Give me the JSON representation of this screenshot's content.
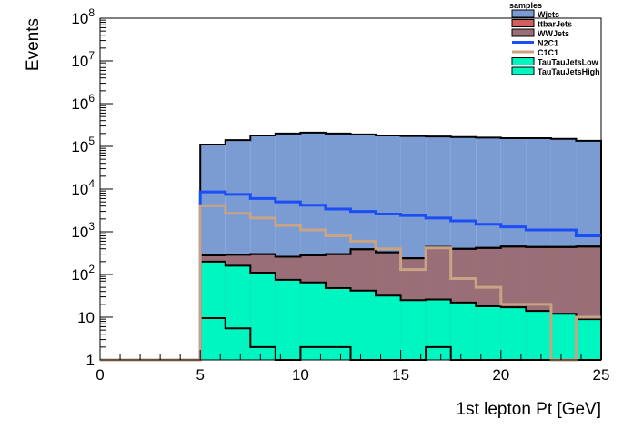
{
  "chart_data": {
    "type": "histogram",
    "xlabel": "1st lepton Pt [GeV]",
    "ylabel": "Events",
    "xlim": [
      0,
      25
    ],
    "ylim": [
      1,
      100000000
    ],
    "log_y": true,
    "grid": false,
    "bin_width": 1.25,
    "bin_edges": [
      0,
      1.25,
      2.5,
      3.75,
      5,
      6.25,
      7.5,
      8.75,
      10,
      11.25,
      12.5,
      13.75,
      15,
      16.25,
      17.5,
      18.75,
      20,
      21.25,
      22.5,
      23.75,
      25
    ],
    "x_ticks": [
      {
        "value": 0,
        "label": "0"
      },
      {
        "value": 5,
        "label": "5"
      },
      {
        "value": 10,
        "label": "10"
      },
      {
        "value": 15,
        "label": "15"
      },
      {
        "value": 20,
        "label": "20"
      },
      {
        "value": 25,
        "label": "25"
      }
    ],
    "y_ticks": [
      {
        "value": 1,
        "base": "1",
        "exp": ""
      },
      {
        "value": 10,
        "base": "10",
        "exp": ""
      },
      {
        "value": 100,
        "base": "10",
        "exp": "2"
      },
      {
        "value": 1000,
        "base": "10",
        "exp": "3"
      },
      {
        "value": 10000,
        "base": "10",
        "exp": "4"
      },
      {
        "value": 100000,
        "base": "10",
        "exp": "5"
      },
      {
        "value": 1000000,
        "base": "10",
        "exp": "6"
      },
      {
        "value": 10000000,
        "base": "10",
        "exp": "7"
      },
      {
        "value": 100000000,
        "base": "10",
        "exp": "8"
      }
    ],
    "legend": {
      "title": "samples",
      "position": "top-right",
      "entries": [
        {
          "name": "Wjets",
          "kind": "fill",
          "color": "#7b9bd3"
        },
        {
          "name": "ttbarJets",
          "kind": "fill",
          "color": "#d05e5e"
        },
        {
          "name": "WWJets",
          "kind": "fill",
          "color": "#9a6e76"
        },
        {
          "name": "N2C1",
          "kind": "line",
          "color": "#1b4ef5"
        },
        {
          "name": "C1C1",
          "kind": "line",
          "color": "#c8a484"
        },
        {
          "name": "TauTauJetsLow",
          "kind": "fill",
          "color": "#00f6c0"
        },
        {
          "name": "TauTauJetsHigh",
          "kind": "fill",
          "color": "#00f6c0"
        }
      ]
    },
    "stack": [
      {
        "name": "TauTauJetsHigh",
        "color": "#00f6c0",
        "cumulative": [
          0,
          0,
          0,
          0,
          9.5,
          5.5,
          2,
          1,
          2,
          2,
          1,
          1,
          1,
          2,
          1,
          1,
          1,
          1,
          1,
          1
        ]
      },
      {
        "name": "TauTauJetsLow",
        "color": "#00f6c0",
        "cumulative": [
          0,
          0,
          0,
          0,
          200,
          160,
          110,
          75,
          65,
          48,
          42,
          32,
          25,
          26,
          22,
          18,
          17,
          14,
          12,
          9
        ]
      },
      {
        "name": "WWJets",
        "color": "#9a6e76",
        "cumulative": [
          0,
          0,
          0,
          0,
          280,
          290,
          300,
          260,
          280,
          300,
          390,
          330,
          240,
          440,
          400,
          420,
          450,
          440,
          440,
          450
        ]
      },
      {
        "name": "ttbarJets",
        "color": "#d05e5e",
        "cumulative": [
          0,
          0,
          0,
          0,
          280,
          290,
          300,
          260,
          280,
          300,
          390,
          330,
          240,
          440,
          400,
          420,
          450,
          440,
          440,
          450
        ]
      },
      {
        "name": "Wjets",
        "color": "#7b9bd3",
        "cumulative": [
          0,
          0,
          0,
          0,
          110000,
          140000,
          180000,
          200000,
          210000,
          200000,
          190000,
          180000,
          175000,
          170000,
          165000,
          160000,
          155000,
          155000,
          150000,
          135000
        ]
      }
    ],
    "overlays": [
      {
        "name": "N2C1",
        "color": "#1b4ef5",
        "values": [
          1,
          1,
          1,
          1,
          8600,
          7500,
          6000,
          5000,
          4200,
          3400,
          3000,
          2600,
          2400,
          2100,
          1800,
          1500,
          1300,
          1100,
          1100,
          800
        ]
      },
      {
        "name": "C1C1",
        "color": "#c8a484",
        "values": [
          1,
          1,
          1,
          1,
          4100,
          2700,
          2100,
          1400,
          1100,
          800,
          600,
          400,
          130,
          420,
          80,
          50,
          20,
          20,
          1,
          10
        ]
      }
    ]
  }
}
